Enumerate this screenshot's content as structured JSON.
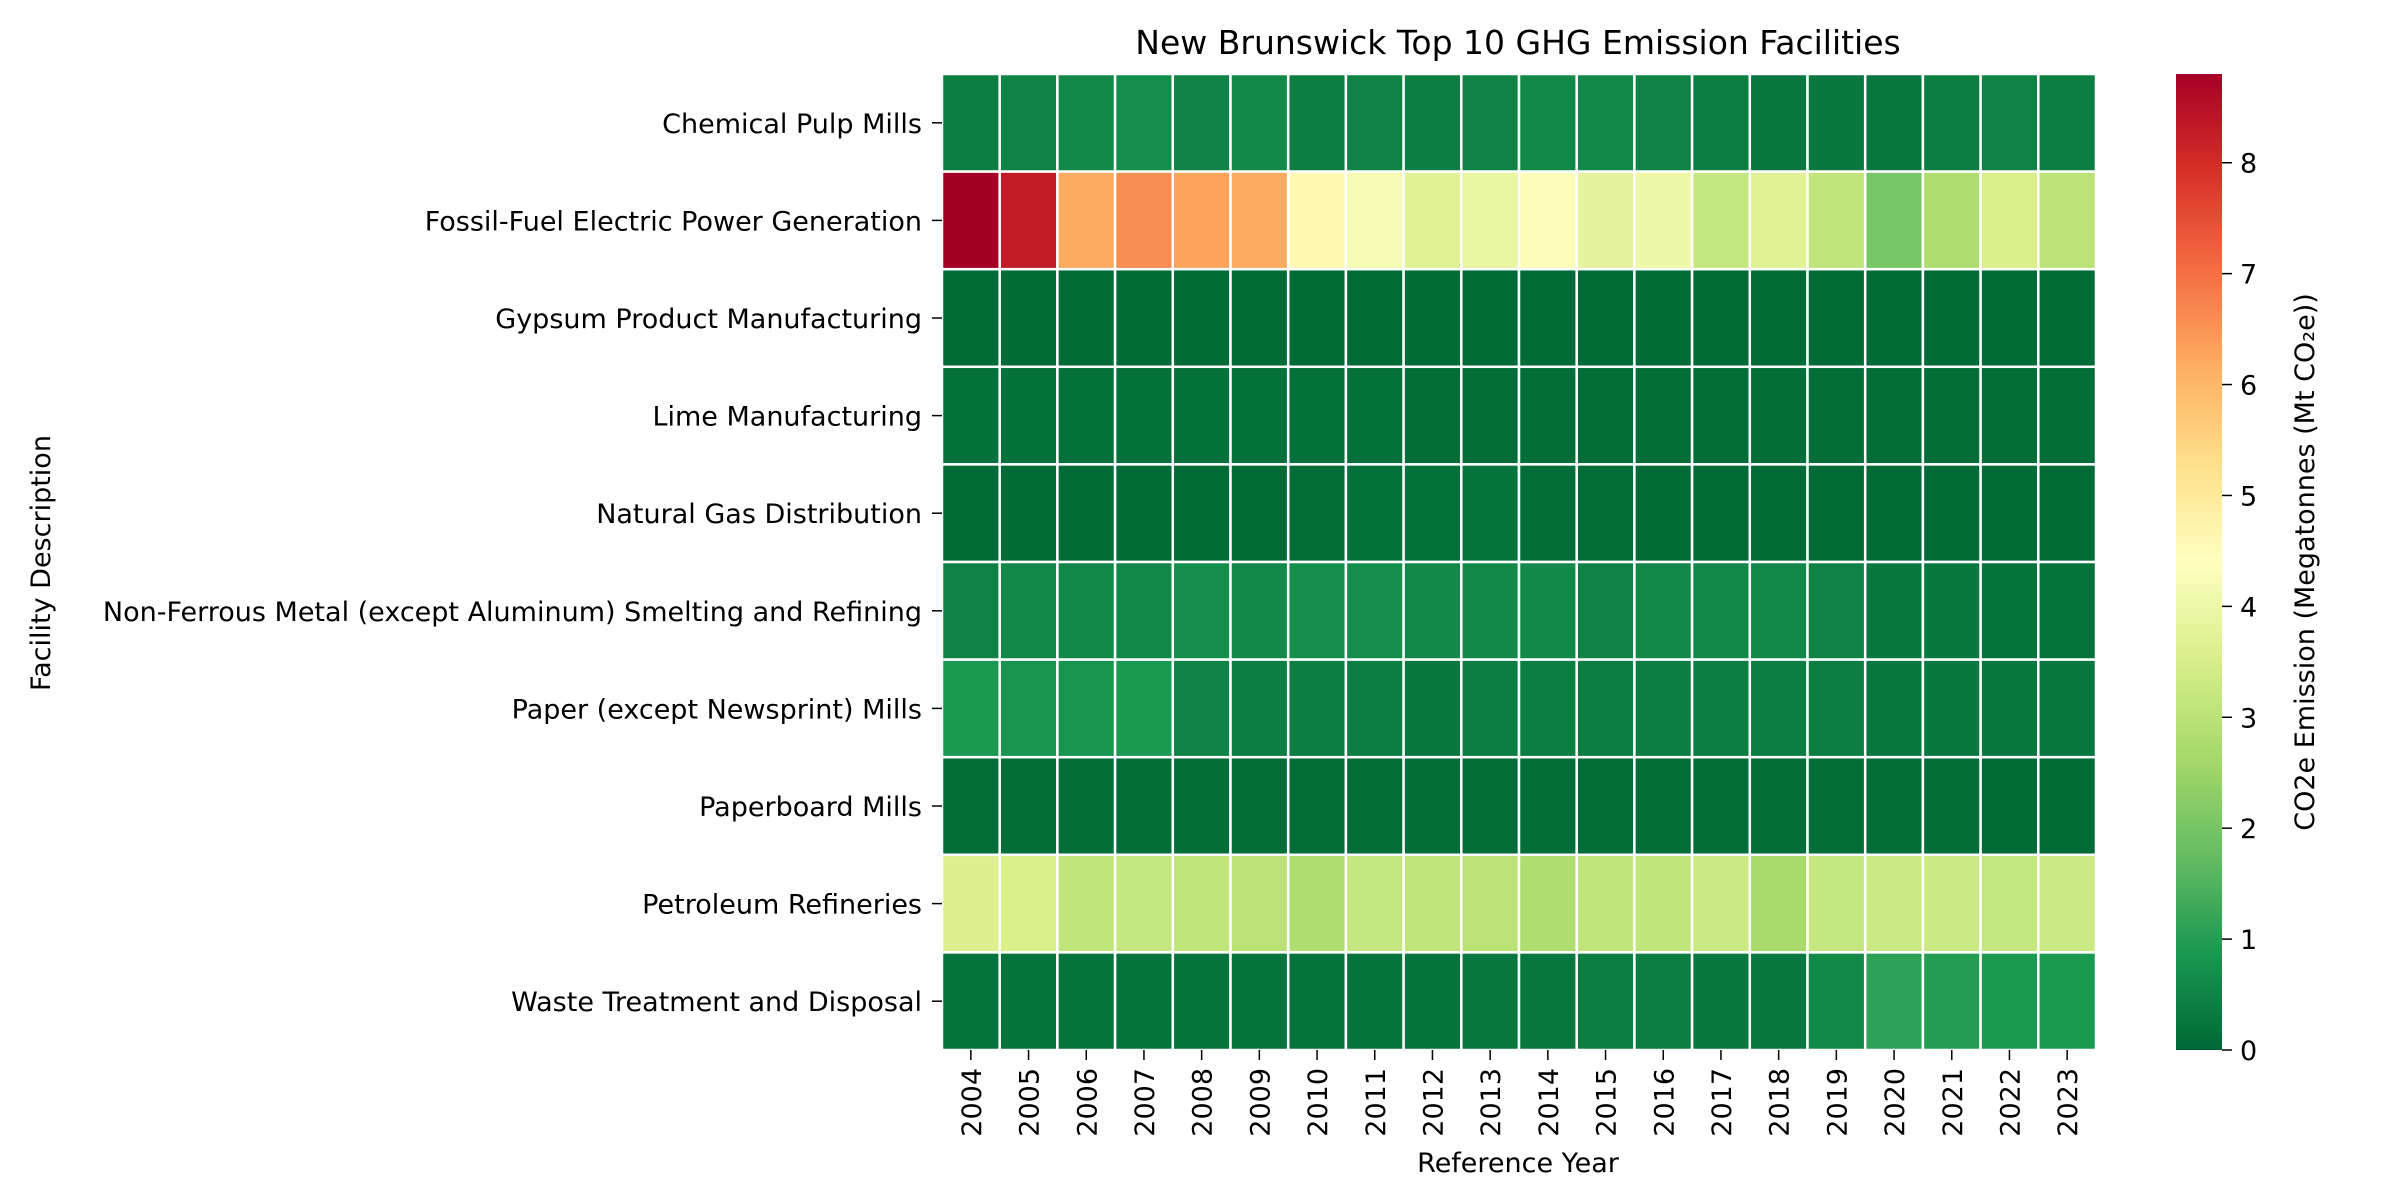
{
  "chart_data": {
    "type": "heatmap",
    "title": "New Brunswick Top 10 GHG Emission Facilities",
    "xlabel": "Reference Year",
    "ylabel": "Facility Description",
    "colorbar_label": "CO2e Emission (Megatonnes (Mt CO₂e))",
    "colormap": "RdYlGn_r",
    "vmin": 0,
    "vmax": 8.8,
    "colorbar_ticks": [
      "0",
      "1",
      "2",
      "3",
      "4",
      "5",
      "6",
      "7",
      "8"
    ],
    "x": [
      "2004",
      "2005",
      "2006",
      "2007",
      "2008",
      "2009",
      "2010",
      "2011",
      "2012",
      "2013",
      "2014",
      "2015",
      "2016",
      "2017",
      "2018",
      "2019",
      "2020",
      "2021",
      "2022",
      "2023"
    ],
    "y": [
      "Chemical Pulp Mills",
      "Fossil-Fuel Electric Power Generation",
      "Gypsum Product Manufacturing",
      "Lime Manufacturing",
      "Natural Gas Distribution",
      "Non-Ferrous Metal (except Aluminum) Smelting and Refining",
      "Paper (except Newsprint) Mills",
      "Paperboard Mills",
      "Petroleum Refineries",
      "Waste Treatment and Disposal"
    ],
    "values": [
      [
        0.4,
        0.5,
        0.6,
        0.7,
        0.5,
        0.6,
        0.4,
        0.5,
        0.4,
        0.5,
        0.6,
        0.6,
        0.5,
        0.4,
        0.3,
        0.3,
        0.3,
        0.4,
        0.5,
        0.4
      ],
      [
        8.8,
        8.3,
        6.2,
        6.6,
        6.3,
        6.2,
        4.6,
        4.2,
        3.7,
        3.9,
        4.3,
        3.8,
        4.0,
        3.2,
        3.7,
        3.1,
        2.0,
        2.8,
        3.5,
        3.0
      ],
      [
        0.05,
        0.05,
        0.05,
        0.05,
        0.05,
        0.05,
        0.05,
        0.05,
        0.05,
        0.05,
        0.05,
        0.05,
        0.05,
        0.05,
        0.05,
        0.05,
        0.05,
        0.05,
        0.05,
        0.05
      ],
      [
        0.15,
        0.15,
        0.15,
        0.15,
        0.15,
        0.15,
        0.15,
        0.15,
        0.1,
        0.1,
        0.1,
        0.1,
        0.1,
        0.1,
        0.1,
        0.1,
        0.1,
        0.1,
        0.1,
        0.1
      ],
      [
        0.05,
        0.05,
        0.05,
        0.05,
        0.05,
        0.05,
        0.1,
        0.15,
        0.15,
        0.2,
        0.1,
        0.1,
        0.05,
        0.05,
        0.05,
        0.05,
        0.05,
        0.05,
        0.05,
        0.05
      ],
      [
        0.5,
        0.6,
        0.6,
        0.6,
        0.7,
        0.6,
        0.7,
        0.7,
        0.6,
        0.6,
        0.6,
        0.5,
        0.6,
        0.6,
        0.6,
        0.5,
        0.3,
        0.3,
        0.2,
        0.2
      ],
      [
        0.9,
        0.8,
        0.8,
        0.9,
        0.5,
        0.4,
        0.4,
        0.4,
        0.3,
        0.4,
        0.4,
        0.4,
        0.4,
        0.4,
        0.4,
        0.4,
        0.3,
        0.3,
        0.3,
        0.3
      ],
      [
        0.1,
        0.1,
        0.1,
        0.1,
        0.1,
        0.1,
        0.1,
        0.1,
        0.1,
        0.1,
        0.1,
        0.1,
        0.1,
        0.1,
        0.1,
        0.1,
        0.1,
        0.1,
        0.05,
        0.05
      ],
      [
        3.6,
        3.5,
        3.1,
        3.2,
        3.1,
        3.0,
        2.8,
        3.2,
        3.1,
        3.0,
        2.8,
        3.1,
        3.1,
        3.3,
        2.7,
        3.2,
        3.3,
        3.3,
        3.2,
        3.3
      ],
      [
        0.2,
        0.2,
        0.2,
        0.2,
        0.2,
        0.2,
        0.2,
        0.2,
        0.2,
        0.3,
        0.3,
        0.4,
        0.4,
        0.3,
        0.3,
        0.6,
        1.1,
        1.0,
        0.9,
        0.9
      ]
    ]
  }
}
